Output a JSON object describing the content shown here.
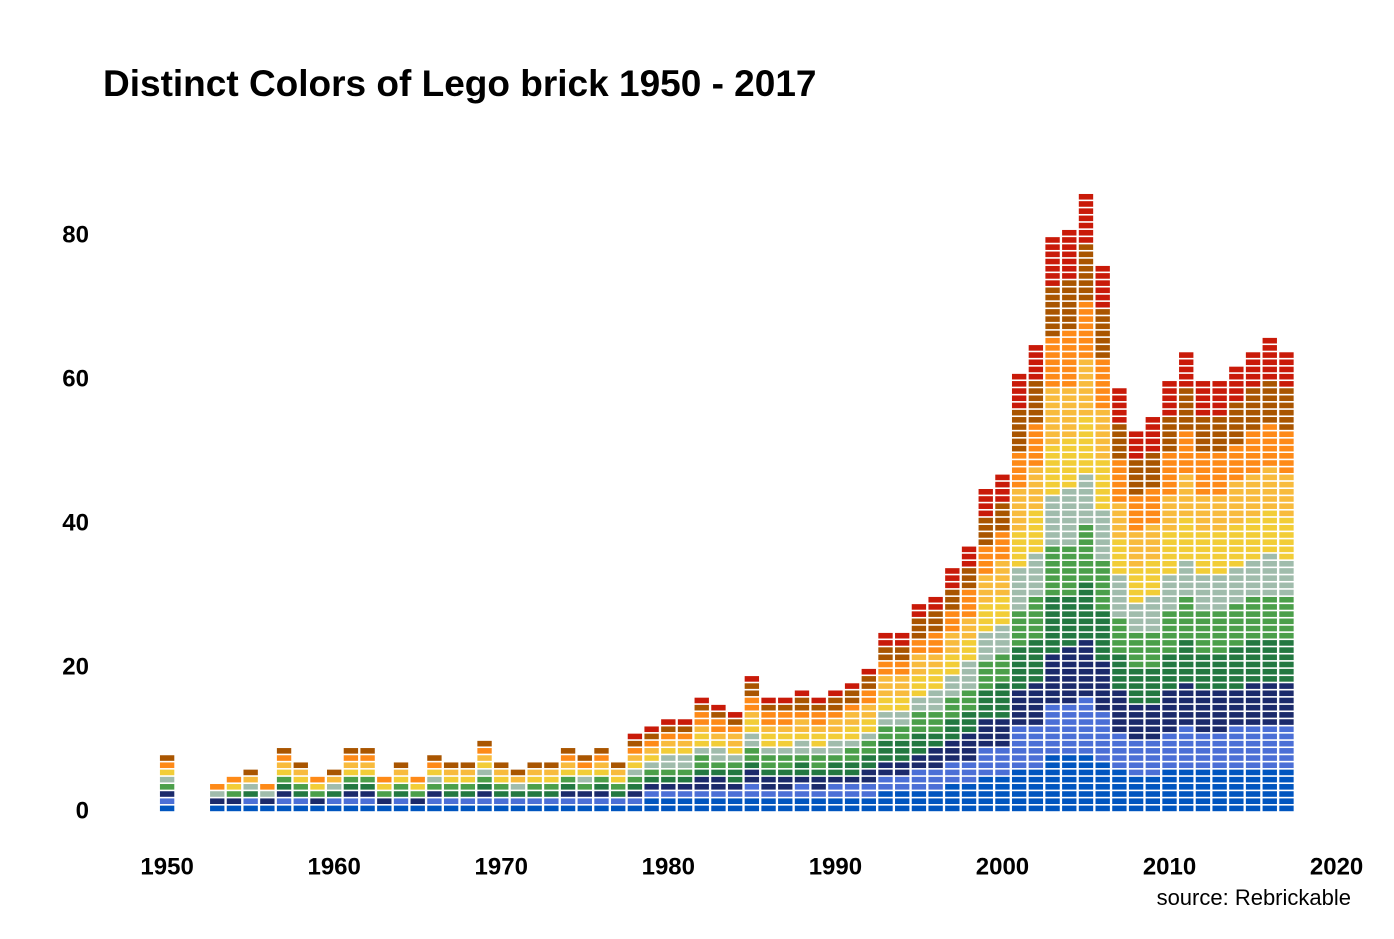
{
  "chart_data": {
    "type": "tiles",
    "title": "Distinct Colors of Lego brick 1950 - 2017",
    "caption": "source: Rebrickable",
    "x": [
      1950,
      1951,
      1952,
      1953,
      1954,
      1955,
      1956,
      1957,
      1958,
      1959,
      1960,
      1961,
      1962,
      1963,
      1964,
      1965,
      1966,
      1967,
      1968,
      1969,
      1970,
      1971,
      1972,
      1973,
      1974,
      1975,
      1976,
      1977,
      1978,
      1979,
      1980,
      1981,
      1982,
      1983,
      1984,
      1985,
      1986,
      1987,
      1988,
      1989,
      1990,
      1991,
      1992,
      1993,
      1994,
      1995,
      1996,
      1997,
      1998,
      1999,
      2000,
      2001,
      2002,
      2003,
      2004,
      2005,
      2006,
      2007,
      2008,
      2009,
      2010,
      2011,
      2012,
      2013,
      2014,
      2015,
      2016,
      2017
    ],
    "values": [
      8,
      0,
      0,
      4,
      5,
      6,
      4,
      9,
      7,
      5,
      6,
      9,
      9,
      5,
      7,
      5,
      8,
      7,
      7,
      10,
      7,
      6,
      7,
      7,
      9,
      8,
      9,
      7,
      11,
      12,
      13,
      13,
      16,
      15,
      14,
      19,
      16,
      16,
      17,
      16,
      17,
      18,
      20,
      25,
      25,
      29,
      30,
      34,
      37,
      45,
      47,
      61,
      65,
      80,
      81,
      86,
      76,
      59,
      53,
      55,
      60,
      64,
      60,
      60,
      62,
      64,
      66,
      64
    ],
    "colors": [
      "#0055bf",
      "#4b6fd6",
      "#1b2a6b",
      "#237841",
      "#4b9f4a",
      "#a0bcac",
      "#f2cd37",
      "#f8bb3d",
      "#fe8a18",
      "#a95500",
      "#c91a09"
    ],
    "xlim": [
      1947,
      2022
    ],
    "xticks": [
      1950,
      1960,
      1970,
      1980,
      1990,
      2000,
      2010,
      2020
    ],
    "ylim": [
      -2.5,
      92
    ],
    "yticks": [
      0,
      20,
      40,
      60,
      80
    ]
  }
}
